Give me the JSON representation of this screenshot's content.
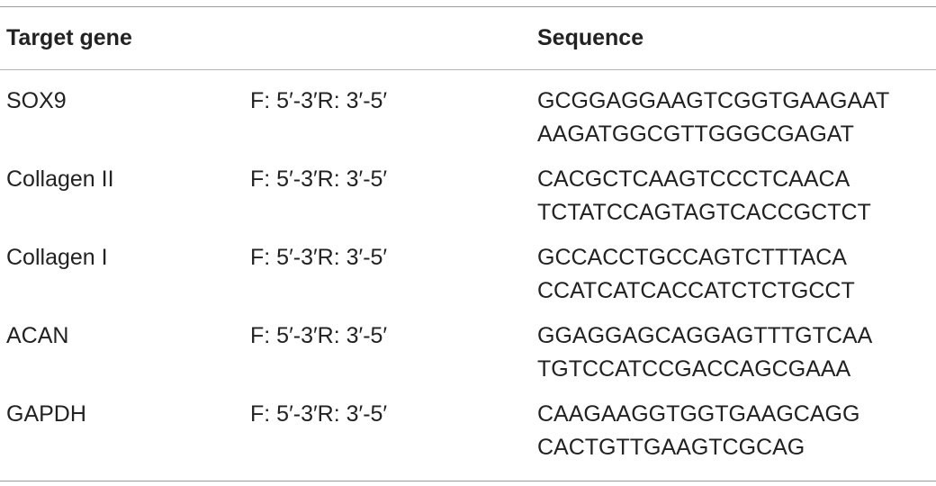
{
  "table": {
    "header": {
      "gene": "Target gene",
      "direction": "",
      "sequence": "Sequence"
    },
    "rows": [
      {
        "gene": "SOX9",
        "direction": "F: 5′-3′R: 3′-5′",
        "forward": "GCGGAGGAAGTCGGTGAAGAAT",
        "reverse": "AAGATGGCGTTGGGCGAGAT"
      },
      {
        "gene": "Collagen II",
        "direction": "F: 5′-3′R: 3′-5′",
        "forward": "CACGCTCAAGTCCCTCAACA",
        "reverse": "TCTATCCAGTAGTCACCGCTCT"
      },
      {
        "gene": "Collagen I",
        "direction": "F: 5′-3′R: 3′-5′",
        "forward": "GCCACCTGCCAGTCTTTACA",
        "reverse": "CCATCATCACCATCTCTGCCT"
      },
      {
        "gene": "ACAN",
        "direction": "F: 5′-3′R: 3′-5′",
        "forward": "GGAGGAGCAGGAGTTTGTCAA",
        "reverse": "TGTCCATCCGACCAGCGAAA"
      },
      {
        "gene": "GAPDH",
        "direction": "F: 5′-3′R: 3′-5′",
        "forward": "CAAGAAGGTGGTGAAGCAGG",
        "reverse": "CACTGTTGAAGTCGCAG"
      }
    ]
  }
}
